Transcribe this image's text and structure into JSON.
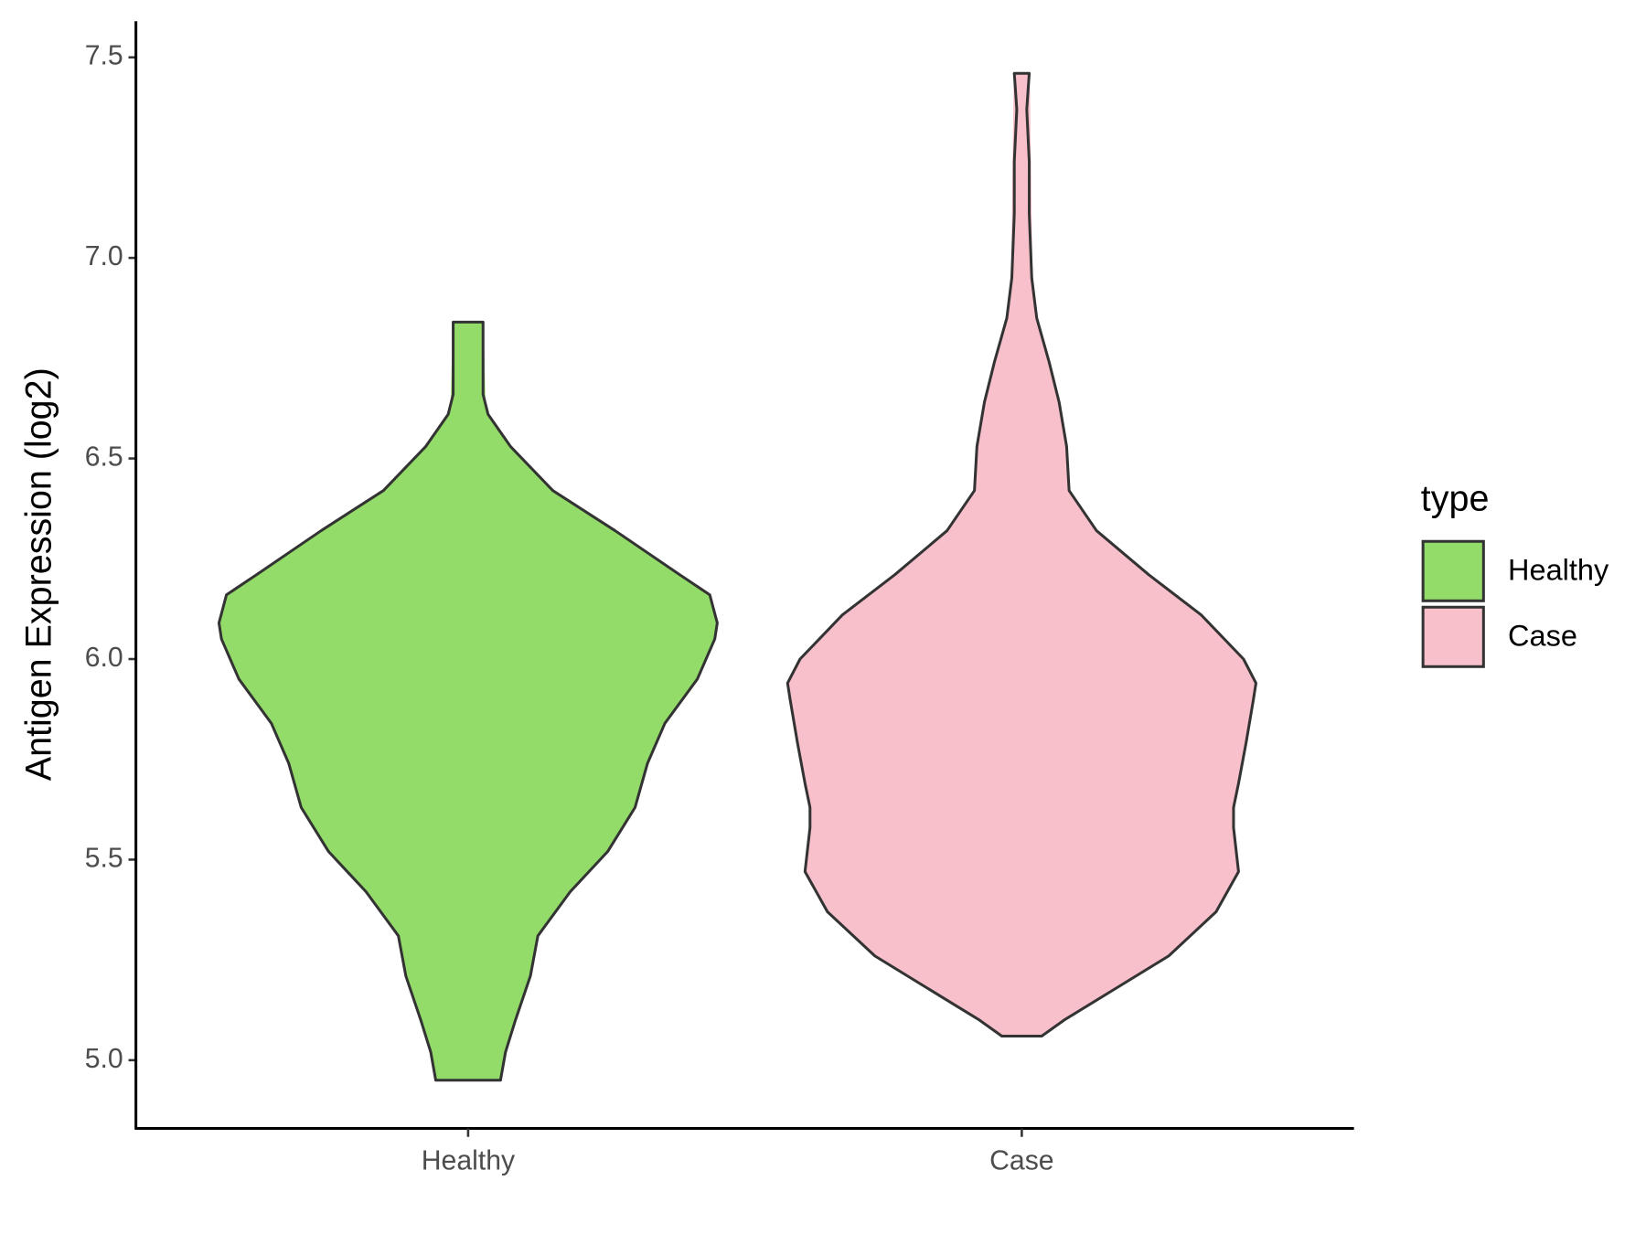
{
  "chart_data": {
    "type": "violin",
    "y_label": "Antigen Expression (log2)",
    "legend_title": "type",
    "categories": [
      "Healthy",
      "Case"
    ],
    "ylim": [
      4.83,
      7.59
    ],
    "yticks": [
      {
        "value": 5,
        "label": "5.0"
      },
      {
        "value": 5.5,
        "label": "5.5"
      },
      {
        "value": 6,
        "label": "6.0"
      },
      {
        "value": 6.5,
        "label": "6.5"
      },
      {
        "value": 7,
        "label": "7.0"
      },
      {
        "value": 7.5,
        "label": "7.5"
      }
    ],
    "series": [
      {
        "name": "Healthy",
        "color": "#93dc6a",
        "y": [
          4.95,
          5.02,
          5.1,
          5.21,
          5.31,
          5.42,
          5.52,
          5.63,
          5.74,
          5.84,
          5.95,
          6.05,
          6.09,
          6.16,
          6.21,
          6.32,
          6.42,
          6.53,
          6.61,
          6.66,
          6.74,
          6.84
        ],
        "width": [
          0.13,
          0.15,
          0.19,
          0.25,
          0.28,
          0.41,
          0.56,
          0.67,
          0.72,
          0.79,
          0.92,
          0.99,
          1.0,
          0.97,
          0.85,
          0.59,
          0.34,
          0.17,
          0.08,
          0.06,
          0.06,
          0.06
        ]
      },
      {
        "name": "Case",
        "color": "#f7c0cb",
        "y": [
          5.06,
          5.1,
          5.18,
          5.26,
          5.37,
          5.47,
          5.58,
          5.63,
          5.69,
          5.79,
          5.9,
          5.94,
          6.0,
          6.11,
          6.21,
          6.32,
          6.42,
          6.53,
          6.64,
          6.74,
          6.85,
          6.95,
          7.11,
          7.24,
          7.37,
          7.46
        ],
        "width": [
          0.08,
          0.17,
          0.38,
          0.59,
          0.78,
          0.87,
          0.85,
          0.85,
          0.87,
          0.9,
          0.93,
          0.94,
          0.89,
          0.72,
          0.51,
          0.3,
          0.19,
          0.18,
          0.15,
          0.11,
          0.06,
          0.04,
          0.03,
          0.03,
          0.02,
          0.03
        ]
      }
    ]
  }
}
